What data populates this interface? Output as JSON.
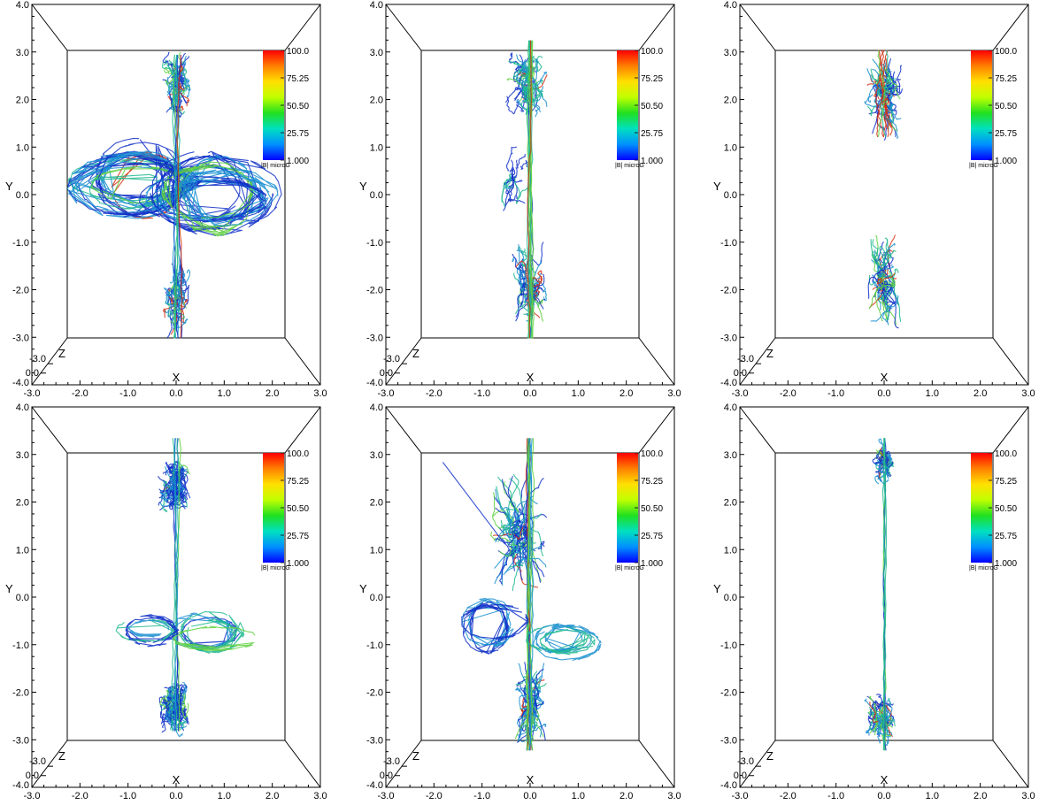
{
  "figure": {
    "panels": [
      {
        "id": "p1",
        "morphology": "cross"
      },
      {
        "id": "p2",
        "morphology": "jet-lobes"
      },
      {
        "id": "p3",
        "morphology": "split-lobes"
      },
      {
        "id": "p4",
        "morphology": "dumbbell"
      },
      {
        "id": "p5",
        "morphology": "jet-spray"
      },
      {
        "id": "p6",
        "morphology": "thin-jet"
      }
    ],
    "axes": {
      "x_label": "X",
      "y_label": "Y",
      "z_label": "Z",
      "x_ticks": [
        "-3.0",
        "-2.0",
        "-1.0",
        "0.0",
        "1.0",
        "2.0",
        "3.0"
      ],
      "y_ticks": [
        "-4.0",
        "-3.0",
        "-2.0",
        "-1.0",
        "0.0",
        "1.0",
        "2.0",
        "3.0",
        "4.0"
      ],
      "z_ticks": [
        "-3.0",
        "0.0"
      ],
      "x_range": [
        -3.0,
        3.0
      ],
      "y_range": [
        -4.0,
        4.0
      ]
    },
    "colorbar": {
      "ticks": [
        "100.0",
        "75.25",
        "50.50",
        "25.75",
        "1.000"
      ],
      "unit": "|B| microG",
      "range": [
        1.0,
        100.0
      ],
      "colors": [
        "#0000ff",
        "#0090ff",
        "#00e0c0",
        "#20e020",
        "#c0ff00",
        "#ffe000",
        "#ff8000",
        "#ff0000"
      ]
    },
    "line_colors": {
      "low": "#1030c8",
      "mid_low": "#1a8fd0",
      "mid": "#20b890",
      "mid_high": "#5fd040",
      "high": "#d23010"
    }
  }
}
